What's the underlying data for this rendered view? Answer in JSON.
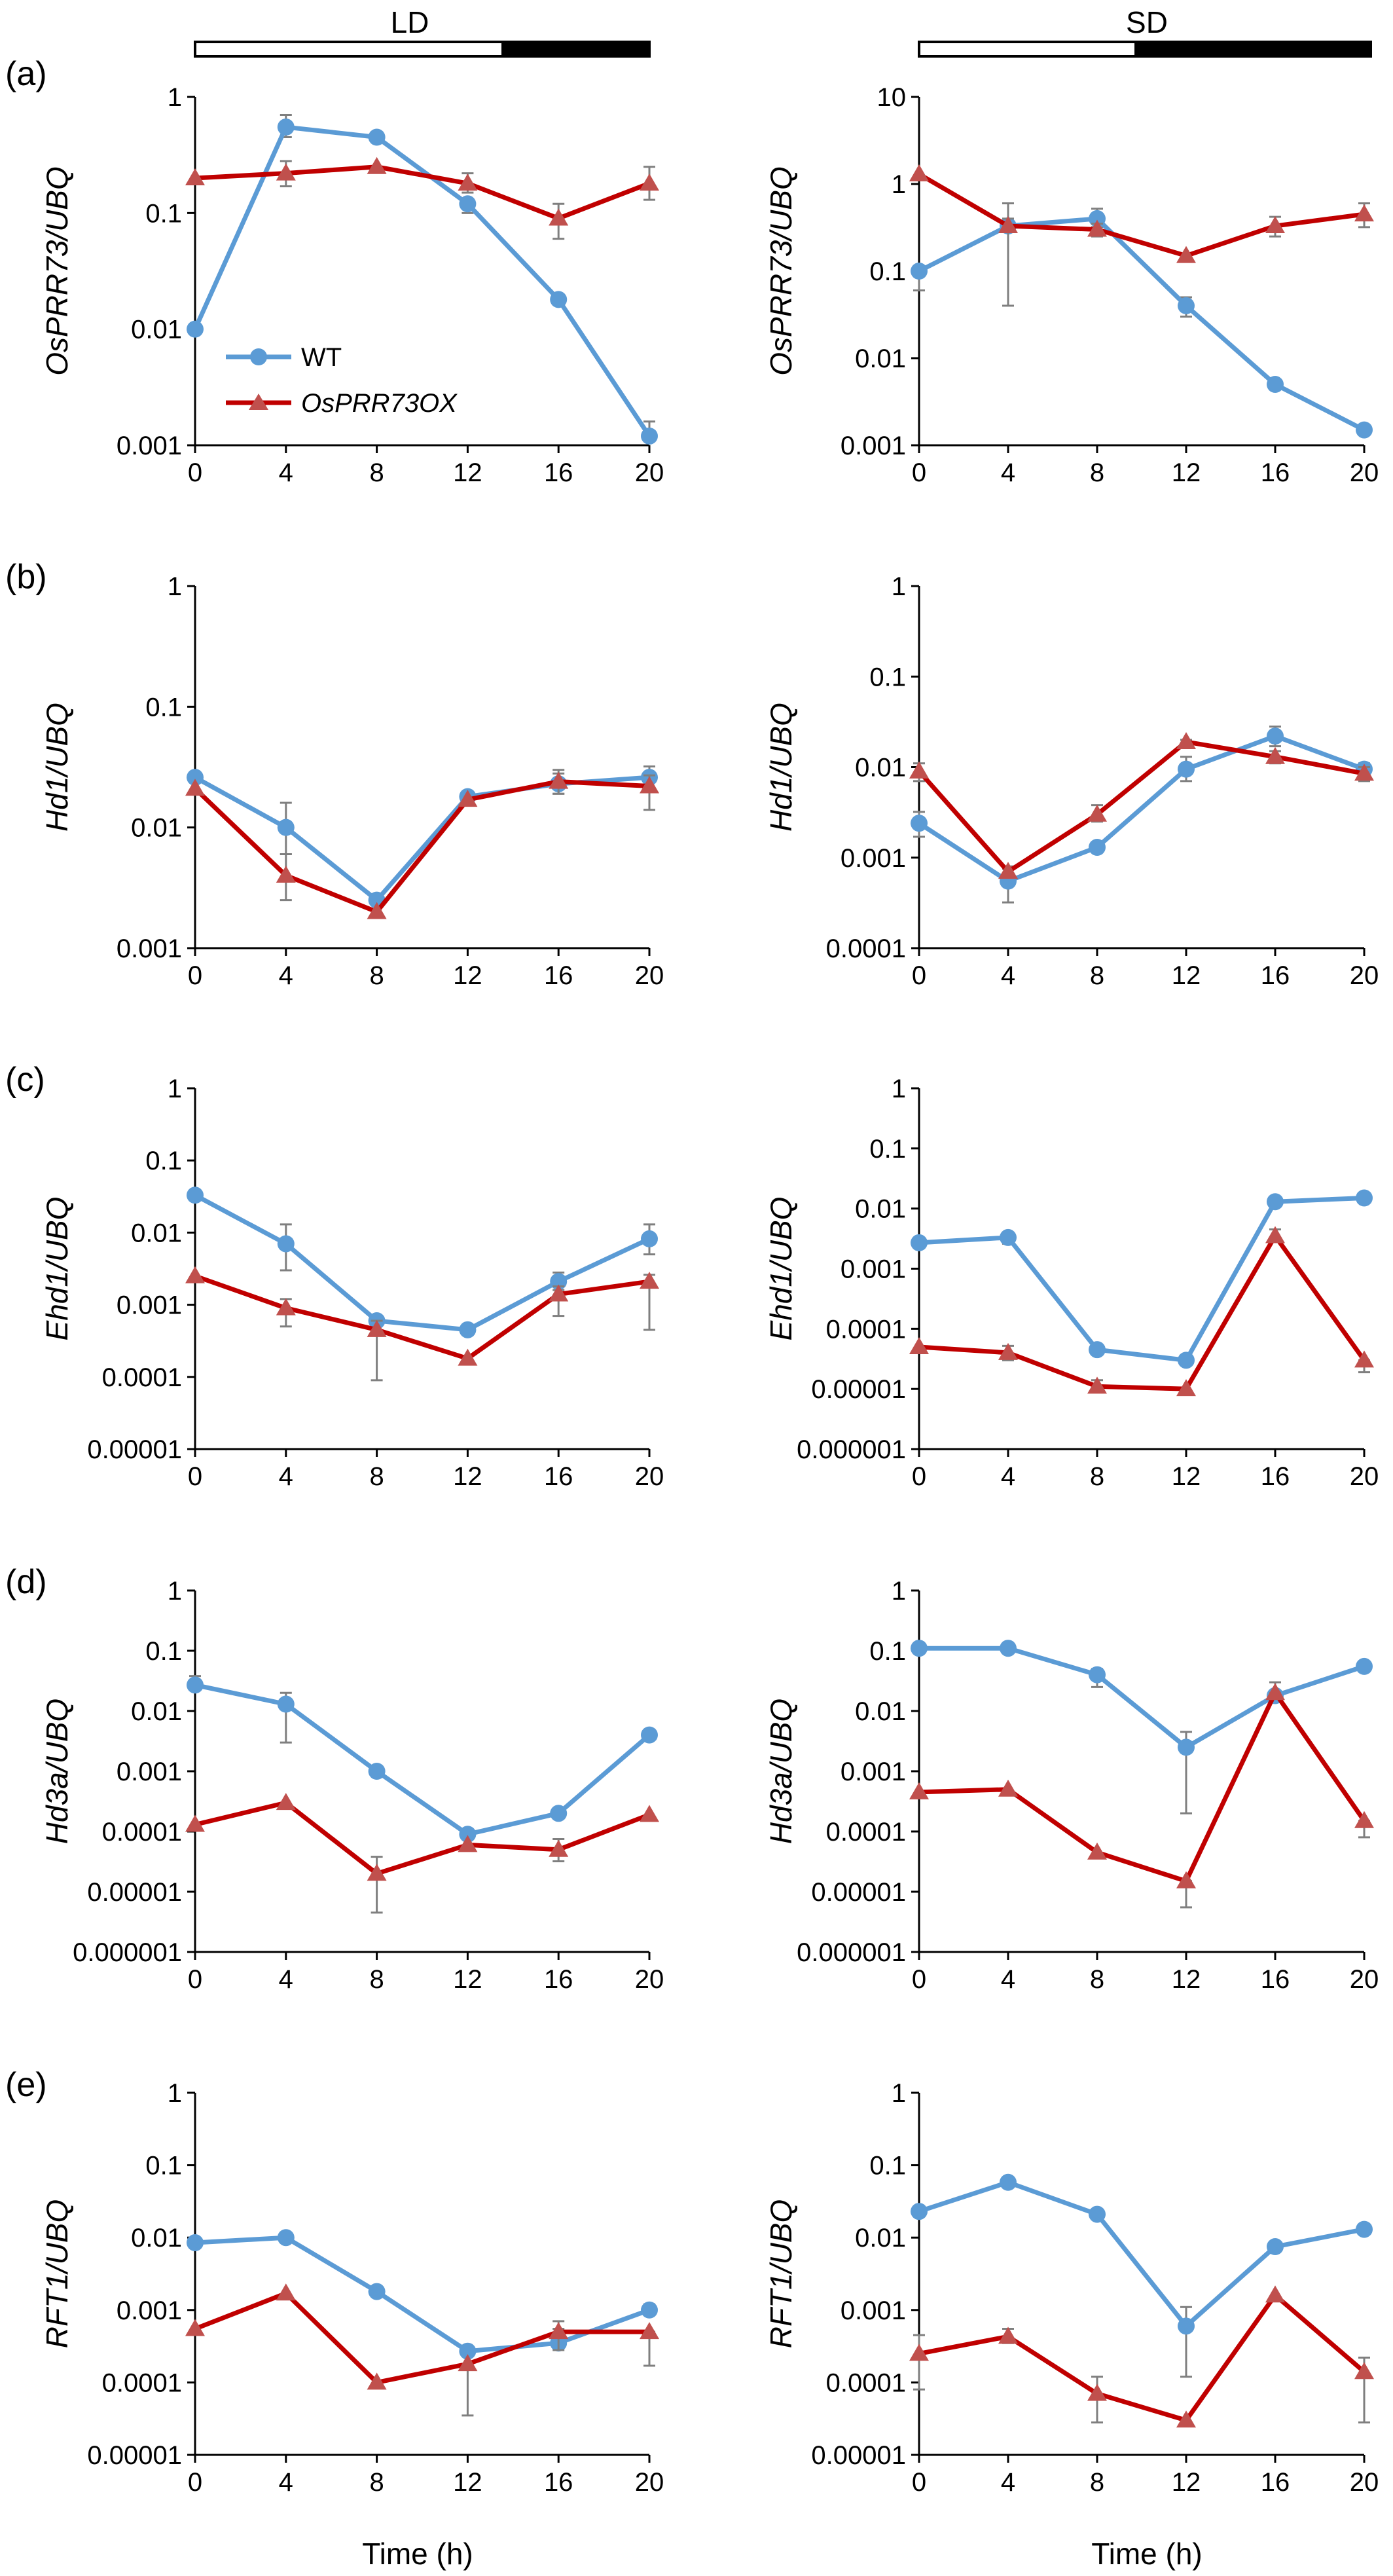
{
  "colors": {
    "wt": "#5b9bd5",
    "ox": "#c00000",
    "error_bar": "#7f7f7f",
    "axis": "#000000"
  },
  "photoperiod_labels": {
    "left": "LD",
    "right": "SD"
  },
  "legend": {
    "wt": "WT",
    "ox": "OsPRR73OX"
  },
  "panel_labels": [
    "(a)",
    "(b)",
    "(c)",
    "(d)",
    "(e)"
  ],
  "xlabel": "Time (h)",
  "chart_data": [
    {
      "type": "line",
      "row": 0,
      "col": 0,
      "yscale": "log",
      "ylabel": "OsPRR73/UBQ",
      "ylim": [
        0.001,
        1
      ],
      "yticks": [
        "0.001",
        "0.01",
        "0.1",
        "1"
      ],
      "x": [
        0,
        4,
        8,
        12,
        16,
        20
      ],
      "series": [
        {
          "name": "WT",
          "values": [
            0.01,
            0.55,
            0.45,
            0.12,
            0.018,
            0.0012
          ],
          "err_up": [
            0.01,
            0.7,
            0.45,
            0.12,
            0.018,
            0.0016
          ],
          "err_low": [
            0.01,
            0.45,
            0.45,
            0.1,
            0.018,
            0.0012
          ]
        },
        {
          "name": "OsPRR73OX",
          "values": [
            0.2,
            0.22,
            0.25,
            0.18,
            0.09,
            0.18
          ],
          "err_up": [
            0.2,
            0.28,
            0.25,
            0.22,
            0.12,
            0.25
          ],
          "err_low": [
            0.2,
            0.17,
            0.25,
            0.15,
            0.06,
            0.13
          ]
        }
      ]
    },
    {
      "type": "line",
      "row": 0,
      "col": 1,
      "yscale": "log",
      "ylabel": "OsPRR73/UBQ",
      "ylim": [
        0.001,
        10
      ],
      "yticks": [
        "0.001",
        "0.01",
        "0.1",
        "1",
        "10"
      ],
      "x": [
        0,
        4,
        8,
        12,
        16,
        20
      ],
      "series": [
        {
          "name": "WT",
          "values": [
            0.1,
            0.33,
            0.4,
            0.04,
            0.005,
            0.0015
          ],
          "err_up": [
            0.1,
            0.6,
            0.52,
            0.05,
            0.005,
            0.0015
          ],
          "err_low": [
            0.06,
            0.33,
            0.32,
            0.03,
            0.005,
            0.0015
          ]
        },
        {
          "name": "OsPRR73OX",
          "values": [
            1.3,
            0.33,
            0.3,
            0.15,
            0.33,
            0.45
          ],
          "err_up": [
            1.3,
            0.4,
            0.35,
            0.15,
            0.42,
            0.6
          ],
          "err_low": [
            1.3,
            0.04,
            0.25,
            0.15,
            0.25,
            0.32
          ]
        }
      ]
    },
    {
      "type": "line",
      "row": 1,
      "col": 0,
      "yscale": "log",
      "ylabel": "Hd1/UBQ",
      "ylim": [
        0.001,
        1
      ],
      "yticks": [
        "0.001",
        "0.01",
        "0.1",
        "1"
      ],
      "x": [
        0,
        4,
        8,
        12,
        16,
        20
      ],
      "series": [
        {
          "name": "WT",
          "values": [
            0.026,
            0.01,
            0.0025,
            0.018,
            0.023,
            0.026
          ],
          "err_up": [
            0.026,
            0.016,
            0.0025,
            0.018,
            0.028,
            0.032
          ],
          "err_low": [
            0.026,
            0.006,
            0.0025,
            0.018,
            0.019,
            0.02
          ]
        },
        {
          "name": "OsPRR73OX",
          "values": [
            0.021,
            0.004,
            0.002,
            0.017,
            0.024,
            0.022
          ],
          "err_up": [
            0.021,
            0.006,
            0.002,
            0.017,
            0.03,
            0.027
          ],
          "err_low": [
            0.021,
            0.0025,
            0.002,
            0.017,
            0.019,
            0.014
          ]
        }
      ]
    },
    {
      "type": "line",
      "row": 1,
      "col": 1,
      "yscale": "log",
      "ylabel": "Hd1/UBQ",
      "ylim": [
        0.0001,
        1
      ],
      "yticks": [
        "0.0001",
        "0.001",
        "0.01",
        "0.1",
        "1"
      ],
      "x": [
        0,
        4,
        8,
        12,
        16,
        20
      ],
      "series": [
        {
          "name": "WT",
          "values": [
            0.0024,
            0.00055,
            0.0013,
            0.0095,
            0.022,
            0.0095
          ],
          "err_up": [
            0.0032,
            0.00075,
            0.0013,
            0.013,
            0.028,
            0.011
          ],
          "err_low": [
            0.0017,
            0.00032,
            0.0013,
            0.007,
            0.017,
            0.008
          ]
        },
        {
          "name": "OsPRR73OX",
          "values": [
            0.009,
            0.0007,
            0.003,
            0.019,
            0.013,
            0.0085
          ],
          "err_up": [
            0.011,
            0.0008,
            0.0038,
            0.02,
            0.015,
            0.01
          ],
          "err_low": [
            0.007,
            0.0006,
            0.0025,
            0.017,
            0.011,
            0.007
          ]
        }
      ]
    },
    {
      "type": "line",
      "row": 2,
      "col": 0,
      "yscale": "log",
      "ylabel": "Ehd1/UBQ",
      "ylim": [
        1e-05,
        1
      ],
      "yticks": [
        "0.00001",
        "0.0001",
        "0.001",
        "0.01",
        "0.1",
        "1"
      ],
      "x": [
        0,
        4,
        8,
        12,
        16,
        20
      ],
      "series": [
        {
          "name": "WT",
          "values": [
            0.033,
            0.007,
            0.0006,
            0.00045,
            0.0021,
            0.0082
          ],
          "err_up": [
            0.033,
            0.013,
            0.0006,
            0.00045,
            0.0028,
            0.013
          ],
          "err_low": [
            0.033,
            0.003,
            0.0006,
            0.00045,
            0.0016,
            0.005
          ]
        },
        {
          "name": "OsPRR73OX",
          "values": [
            0.0025,
            0.0009,
            0.00045,
            0.00018,
            0.0014,
            0.0021
          ],
          "err_up": [
            0.0025,
            0.0012,
            0.0006,
            0.00018,
            0.0018,
            0.0026
          ],
          "err_low": [
            0.0025,
            0.0005,
            9e-05,
            0.00018,
            0.0007,
            0.00045
          ]
        }
      ]
    },
    {
      "type": "line",
      "row": 2,
      "col": 1,
      "yscale": "log",
      "ylabel": "Ehd1/UBQ",
      "ylim": [
        1e-06,
        1
      ],
      "yticks": [
        "0.000001",
        "0.00001",
        "0.0001",
        "0.001",
        "0.01",
        "0.1",
        "1"
      ],
      "x": [
        0,
        4,
        8,
        12,
        16,
        20
      ],
      "series": [
        {
          "name": "WT",
          "values": [
            0.0027,
            0.0033,
            4.5e-05,
            3e-05,
            0.013,
            0.015
          ],
          "err_up": [
            0.0027,
            0.0039,
            4.5e-05,
            3e-05,
            0.013,
            0.015
          ],
          "err_low": [
            0.0027,
            0.0026,
            4.5e-05,
            3e-05,
            0.013,
            0.015
          ]
        },
        {
          "name": "OsPRR73OX",
          "values": [
            5e-05,
            4e-05,
            1.1e-05,
            1e-05,
            0.0035,
            3e-05
          ],
          "err_up": [
            5e-05,
            5.2e-05,
            1.4e-05,
            1e-05,
            0.0045,
            3e-05
          ],
          "err_low": [
            5e-05,
            3e-05,
            9e-06,
            1e-05,
            0.0028,
            1.9e-05
          ]
        }
      ]
    },
    {
      "type": "line",
      "row": 3,
      "col": 0,
      "yscale": "log",
      "ylabel": "Hd3a/UBQ",
      "ylim": [
        1e-06,
        1
      ],
      "yticks": [
        "0.000001",
        "0.00001",
        "0.0001",
        "0.001",
        "0.01",
        "0.1",
        "1"
      ],
      "x": [
        0,
        4,
        8,
        12,
        16,
        20
      ],
      "series": [
        {
          "name": "WT",
          "values": [
            0.027,
            0.013,
            0.001,
            9e-05,
            0.0002,
            0.004
          ],
          "err_up": [
            0.038,
            0.02,
            0.001,
            9e-05,
            0.0002,
            0.004
          ],
          "err_low": [
            0.027,
            0.003,
            0.001,
            9e-05,
            0.0002,
            0.004
          ]
        },
        {
          "name": "OsPRR73OX",
          "values": [
            0.00013,
            0.0003,
            2e-05,
            6e-05,
            5e-05,
            0.00019
          ],
          "err_up": [
            0.00013,
            0.0003,
            3.8e-05,
            6e-05,
            7.5e-05,
            0.00019
          ],
          "err_low": [
            0.00013,
            0.0003,
            4.5e-06,
            6e-05,
            3.2e-05,
            0.00019
          ]
        }
      ]
    },
    {
      "type": "line",
      "row": 3,
      "col": 1,
      "yscale": "log",
      "ylabel": "Hd3a/UBQ",
      "ylim": [
        1e-06,
        1
      ],
      "yticks": [
        "0.000001",
        "0.00001",
        "0.0001",
        "0.001",
        "0.01",
        "0.1",
        "1"
      ],
      "x": [
        0,
        4,
        8,
        12,
        16,
        20
      ],
      "series": [
        {
          "name": "WT",
          "values": [
            0.11,
            0.11,
            0.04,
            0.0025,
            0.018,
            0.055
          ],
          "err_up": [
            0.11,
            0.11,
            0.05,
            0.0045,
            0.018,
            0.055
          ],
          "err_low": [
            0.11,
            0.11,
            0.025,
            0.0002,
            0.018,
            0.055
          ]
        },
        {
          "name": "OsPRR73OX",
          "values": [
            0.00045,
            0.0005,
            4.5e-05,
            1.5e-05,
            0.02,
            0.00015
          ],
          "err_up": [
            0.00045,
            0.0005,
            4.5e-05,
            1.5e-05,
            0.03,
            0.00015
          ],
          "err_low": [
            0.00045,
            0.0005,
            4.5e-05,
            5.5e-06,
            0.02,
            8e-05
          ]
        }
      ]
    },
    {
      "type": "line",
      "row": 4,
      "col": 0,
      "yscale": "log",
      "ylabel": "RFT1/UBQ",
      "ylim": [
        1e-05,
        1
      ],
      "yticks": [
        "0.00001",
        "0.0001",
        "0.001",
        "0.01",
        "0.1",
        "1"
      ],
      "x": [
        0,
        4,
        8,
        12,
        16,
        20
      ],
      "series": [
        {
          "name": "WT",
          "values": [
            0.0085,
            0.01,
            0.0018,
            0.00027,
            0.00035,
            0.001
          ],
          "err_up": [
            0.0085,
            0.01,
            0.0018,
            0.00027,
            0.00055,
            0.0012
          ],
          "err_low": [
            0.0085,
            0.01,
            0.0018,
            0.00027,
            0.00035,
            0.001
          ]
        },
        {
          "name": "OsPRR73OX",
          "values": [
            0.00055,
            0.0017,
            0.0001,
            0.00018,
            0.0005,
            0.0005
          ],
          "err_up": [
            0.00055,
            0.0017,
            0.0001,
            0.00018,
            0.0007,
            0.0005
          ],
          "err_low": [
            0.00055,
            0.0017,
            0.0001,
            3.5e-05,
            0.00028,
            0.00017
          ]
        }
      ]
    },
    {
      "type": "line",
      "row": 4,
      "col": 1,
      "yscale": "log",
      "ylabel": "RFT1/UBQ",
      "ylim": [
        1e-05,
        1
      ],
      "yticks": [
        "0.00001",
        "0.0001",
        "0.001",
        "0.01",
        "0.1",
        "1"
      ],
      "x": [
        0,
        4,
        8,
        12,
        16,
        20
      ],
      "series": [
        {
          "name": "WT",
          "values": [
            0.023,
            0.058,
            0.021,
            0.0006,
            0.0075,
            0.013
          ],
          "err_up": [
            0.023,
            0.058,
            0.021,
            0.0011,
            0.0075,
            0.013
          ],
          "err_low": [
            0.023,
            0.058,
            0.021,
            0.00012,
            0.0075,
            0.013
          ]
        },
        {
          "name": "OsPRR73OX",
          "values": [
            0.00025,
            0.00043,
            7e-05,
            3e-05,
            0.0016,
            0.00014
          ],
          "err_up": [
            0.00045,
            0.00055,
            0.00012,
            3e-05,
            0.0016,
            0.00022
          ],
          "err_low": [
            8e-05,
            0.00035,
            2.8e-05,
            3e-05,
            0.0016,
            2.8e-05
          ]
        }
      ]
    }
  ]
}
